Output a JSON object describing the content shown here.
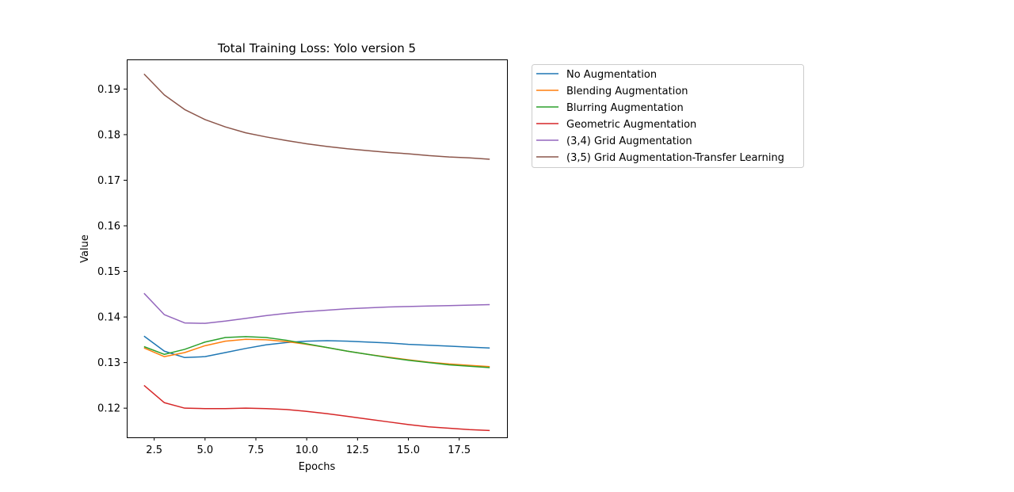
{
  "chart_data": {
    "type": "line",
    "title": "Total Training Loss: Yolo version 5",
    "xlabel": "Epochs",
    "ylabel": "Value",
    "xlim": [
      1.15,
      19.85
    ],
    "ylim": [
      0.1136,
      0.1965
    ],
    "xticks": [
      2.5,
      5.0,
      7.5,
      10.0,
      12.5,
      15.0,
      17.5
    ],
    "xtick_labels": [
      "2.5",
      "5.0",
      "7.5",
      "10.0",
      "12.5",
      "15.0",
      "17.5"
    ],
    "yticks": [
      0.12,
      0.13,
      0.14,
      0.15,
      0.16,
      0.17,
      0.18,
      0.19
    ],
    "ytick_labels": [
      "0.12",
      "0.13",
      "0.14",
      "0.15",
      "0.16",
      "0.17",
      "0.18",
      "0.19"
    ],
    "grid": false,
    "legend_position": "outside-right-top",
    "x": [
      2,
      3,
      4,
      5,
      6,
      7,
      8,
      9,
      10,
      11,
      12,
      13,
      14,
      15,
      16,
      17,
      18,
      19
    ],
    "series": [
      {
        "name": "No Augmentation",
        "color": "#1f77b4",
        "values": [
          0.1358,
          0.1325,
          0.1311,
          0.1313,
          0.1322,
          0.1331,
          0.1339,
          0.1344,
          0.1347,
          0.1348,
          0.1347,
          0.1345,
          0.1343,
          0.134,
          0.1338,
          0.1336,
          0.1334,
          0.1332
        ]
      },
      {
        "name": "Blending Augmentation",
        "color": "#ff7f0e",
        "values": [
          0.1332,
          0.1313,
          0.1322,
          0.1337,
          0.1347,
          0.1351,
          0.135,
          0.1346,
          0.134,
          0.1333,
          0.1325,
          0.1318,
          0.1312,
          0.1306,
          0.1301,
          0.1297,
          0.1294,
          0.1291
        ]
      },
      {
        "name": "Blurring Augmentation",
        "color": "#2ca02c",
        "values": [
          0.1335,
          0.1318,
          0.1329,
          0.1345,
          0.1355,
          0.1357,
          0.1355,
          0.1349,
          0.1341,
          0.1333,
          0.1325,
          0.1318,
          0.1311,
          0.1305,
          0.13,
          0.1295,
          0.1292,
          0.1289
        ]
      },
      {
        "name": "Geometric Augmentation",
        "color": "#d62728",
        "values": [
          0.125,
          0.1212,
          0.12,
          0.1199,
          0.1199,
          0.12,
          0.1199,
          0.1197,
          0.1193,
          0.1188,
          0.1182,
          0.1176,
          0.117,
          0.1164,
          0.1159,
          0.1156,
          0.1153,
          0.1151
        ]
      },
      {
        "name": "(3,4) Grid Augmentation",
        "color": "#9467bd",
        "values": [
          0.1452,
          0.1405,
          0.1387,
          0.1386,
          0.1391,
          0.1397,
          0.1403,
          0.1408,
          0.1412,
          0.1415,
          0.1418,
          0.142,
          0.1422,
          0.1423,
          0.1424,
          0.1425,
          0.1426,
          0.1427
        ]
      },
      {
        "name": "(3,5) Grid Augmentation-Transfer Learning",
        "color": "#8c564b",
        "values": [
          0.1933,
          0.1887,
          0.1855,
          0.1833,
          0.1817,
          0.1804,
          0.1795,
          0.1787,
          0.178,
          0.1774,
          0.1769,
          0.1765,
          0.1761,
          0.1758,
          0.1754,
          0.1751,
          0.1749,
          0.1746
        ]
      }
    ]
  }
}
